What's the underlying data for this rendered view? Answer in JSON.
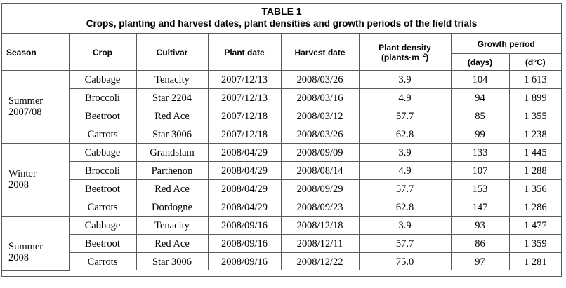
{
  "caption": {
    "number": "TABLE 1",
    "title": "Crops, planting and harvest dates, plant densities and growth periods of the field trials"
  },
  "headers": {
    "season": "Season",
    "crop": "Crop",
    "cultivar": "Cultivar",
    "plant_date": "Plant date",
    "harvest_date": "Harvest date",
    "plant_density": "Plant density",
    "plant_density_unit_prefix": "(plants·m",
    "plant_density_unit_exp": "−2",
    "plant_density_unit_suffix": ")",
    "growth_period": "Growth period",
    "days": "(days)",
    "degree_days": "(d°C)"
  },
  "seasons": [
    {
      "label_line1": "Summer",
      "label_line2": "2007/08",
      "rows": [
        {
          "crop": "Cabbage",
          "cultivar": "Tenacity",
          "plant_date": "2007/12/13",
          "harvest_date": "2008/03/26",
          "density": "3.9",
          "days": "104",
          "degree_days": "1 613"
        },
        {
          "crop": "Broccoli",
          "cultivar": "Star 2204",
          "plant_date": "2007/12/13",
          "harvest_date": "2008/03/16",
          "density": "4.9",
          "days": "94",
          "degree_days": "1 899"
        },
        {
          "crop": "Beetroot",
          "cultivar": "Red Ace",
          "plant_date": "2007/12/18",
          "harvest_date": "2008/03/12",
          "density": "57.7",
          "days": "85",
          "degree_days": "1 355"
        },
        {
          "crop": "Carrots",
          "cultivar": "Star 3006",
          "plant_date": "2007/12/18",
          "harvest_date": "2008/03/26",
          "density": "62.8",
          "days": "99",
          "degree_days": "1 238"
        }
      ]
    },
    {
      "label_line1": "Winter",
      "label_line2": "2008",
      "rows": [
        {
          "crop": "Cabbage",
          "cultivar": "Grandslam",
          "plant_date": "2008/04/29",
          "harvest_date": "2008/09/09",
          "density": "3.9",
          "days": "133",
          "degree_days": "1 445"
        },
        {
          "crop": "Broccoli",
          "cultivar": "Parthenon",
          "plant_date": "2008/04/29",
          "harvest_date": "2008/08/14",
          "density": "4.9",
          "days": "107",
          "degree_days": "1 288"
        },
        {
          "crop": "Beetroot",
          "cultivar": "Red Ace",
          "plant_date": "2008/04/29",
          "harvest_date": "2008/09/29",
          "density": "57.7",
          "days": "153",
          "degree_days": "1 356"
        },
        {
          "crop": "Carrots",
          "cultivar": "Dordogne",
          "plant_date": "2008/04/29",
          "harvest_date": "2008/09/23",
          "density": "62.8",
          "days": "147",
          "degree_days": "1 286"
        }
      ]
    },
    {
      "label_line1": "Summer",
      "label_line2": "2008",
      "rows": [
        {
          "crop": "Cabbage",
          "cultivar": "Tenacity",
          "plant_date": "2008/09/16",
          "harvest_date": "2008/12/18",
          "density": "3.9",
          "days": "93",
          "degree_days": "1 477"
        },
        {
          "crop": "Beetroot",
          "cultivar": "Red Ace",
          "plant_date": "2008/09/16",
          "harvest_date": "2008/12/11",
          "density": "57.7",
          "days": "86",
          "degree_days": "1 359"
        },
        {
          "crop": "Carrots",
          "cultivar": "Star 3006",
          "plant_date": "2008/09/16",
          "harvest_date": "2008/12/22",
          "density": "75.0",
          "days": "97",
          "degree_days": "1 281"
        }
      ]
    }
  ]
}
